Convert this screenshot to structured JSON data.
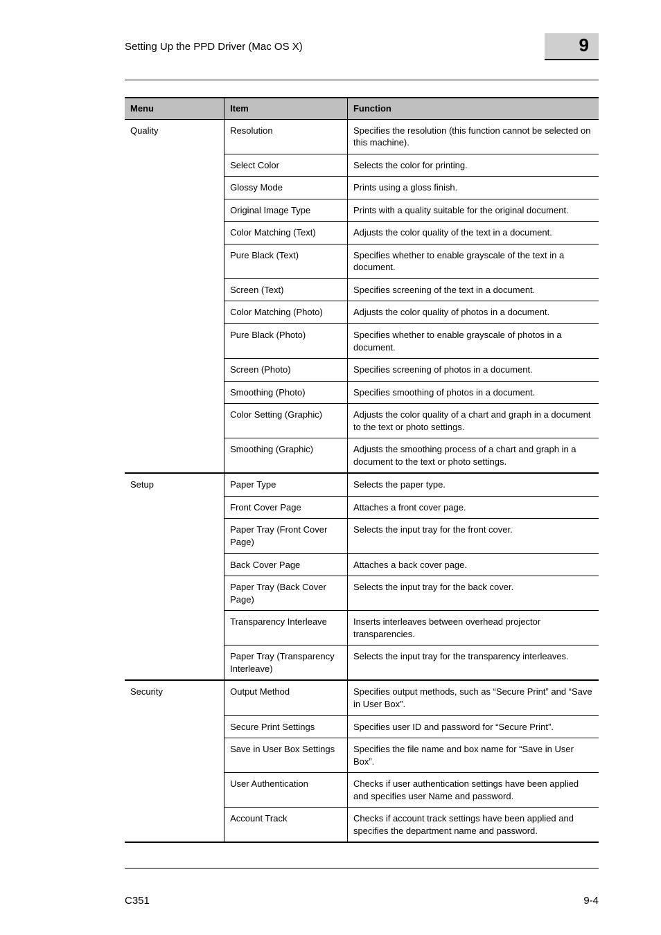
{
  "header": {
    "running_title": "Setting Up the PPD Driver (Mac OS X)",
    "chapter_number": "9"
  },
  "table": {
    "columns": [
      "Menu",
      "Item",
      "Function"
    ],
    "sections": [
      {
        "menu": "Quality",
        "rows": [
          {
            "item": "Resolution",
            "func": "Specifies the resolution (this function cannot be selected on this machine)."
          },
          {
            "item": "Select Color",
            "func": "Selects the color for printing."
          },
          {
            "item": "Glossy Mode",
            "func": "Prints using a gloss finish."
          },
          {
            "item": "Original Image Type",
            "func": "Prints with a quality suitable for the original document."
          },
          {
            "item": "Color Matching (Text)",
            "func": "Adjusts the color quality of the text in a document."
          },
          {
            "item": "Pure Black (Text)",
            "func": "Specifies whether to enable grayscale of the text in a document."
          },
          {
            "item": "Screen (Text)",
            "func": "Specifies screening of the text in a document."
          },
          {
            "item": "Color Matching (Photo)",
            "func": "Adjusts the color quality of photos in a document."
          },
          {
            "item": "Pure Black (Photo)",
            "func": "Specifies whether to enable grayscale of photos in a document."
          },
          {
            "item": "Screen (Photo)",
            "func": "Specifies screening of photos in a document."
          },
          {
            "item": "Smoothing (Photo)",
            "func": "Specifies smoothing of photos in a document."
          },
          {
            "item": "Color Setting (Graphic)",
            "func": "Adjusts the color quality of a chart and graph in a document to the text or photo settings."
          },
          {
            "item": "Smoothing (Graphic)",
            "func": "Adjusts the smoothing process of a chart and graph in a document to the text or photo settings."
          }
        ]
      },
      {
        "menu": "Setup",
        "rows": [
          {
            "item": "Paper Type",
            "func": "Selects the paper type."
          },
          {
            "item": "Front Cover Page",
            "func": "Attaches a front cover page."
          },
          {
            "item": "Paper Tray (Front Cover Page)",
            "func": "Selects the input tray for the front cover."
          },
          {
            "item": "Back Cover Page",
            "func": "Attaches a back cover page."
          },
          {
            "item": "Paper Tray (Back Cover Page)",
            "func": "Selects the input tray for the back cover."
          },
          {
            "item": "Transparency Interleave",
            "func": "Inserts interleaves between overhead projector transparencies."
          },
          {
            "item": "Paper Tray (Transparency Interleave)",
            "func": "Selects the input tray for the transparency interleaves."
          }
        ]
      },
      {
        "menu": "Security",
        "rows": [
          {
            "item": "Output Method",
            "func": "Specifies output methods, such as “Secure Print” and “Save in User Box”."
          },
          {
            "item": "Secure Print Settings",
            "func": "Specifies user ID and password for “Secure Print”."
          },
          {
            "item": "Save in User Box Settings",
            "func": "Specifies the file name and box name for “Save in User Box”."
          },
          {
            "item": "User Authentication",
            "func": "Checks if user authentication settings have been applied and specifies user Name and password."
          },
          {
            "item": "Account Track",
            "func": "Checks if account track settings have been applied and specifies the department name and password."
          }
        ]
      }
    ]
  },
  "footer": {
    "model": "C351",
    "page": "9-4"
  }
}
